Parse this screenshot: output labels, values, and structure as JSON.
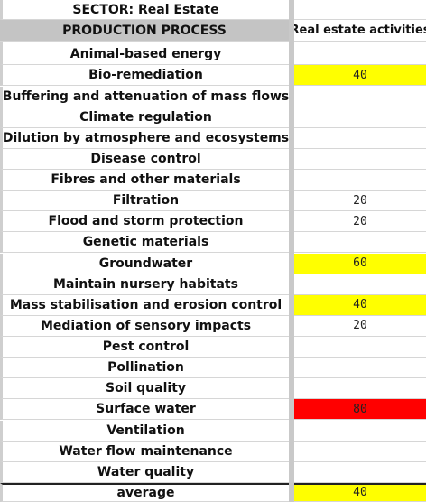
{
  "sector_label": "SECTOR: Real Estate",
  "header": {
    "process_label": "PRODUCTION PROCESS",
    "activity_label": "Real estate activities"
  },
  "colors": {
    "yellow": "#ffff00",
    "red": "#ff0000",
    "header_gray": "#c4c4c4"
  },
  "rows": [
    {
      "name": "Animal-based energy",
      "value": "",
      "color": ""
    },
    {
      "name": "Bio-remediation",
      "value": "40",
      "color": "#ffff00"
    },
    {
      "name": "Buffering and attenuation of mass flows",
      "value": "",
      "color": ""
    },
    {
      "name": "Climate regulation",
      "value": "",
      "color": ""
    },
    {
      "name": "Dilution by atmosphere and ecosystems",
      "value": "",
      "color": ""
    },
    {
      "name": "Disease control",
      "value": "",
      "color": ""
    },
    {
      "name": "Fibres and other materials",
      "value": "",
      "color": ""
    },
    {
      "name": "Filtration",
      "value": "20",
      "color": ""
    },
    {
      "name": "Flood and storm protection",
      "value": "20",
      "color": ""
    },
    {
      "name": "Genetic materials",
      "value": "",
      "color": ""
    },
    {
      "name": "Groundwater",
      "value": "60",
      "color": "#ffff00"
    },
    {
      "name": "Maintain nursery habitats",
      "value": "",
      "color": ""
    },
    {
      "name": "Mass stabilisation and erosion control",
      "value": "40",
      "color": "#ffff00"
    },
    {
      "name": "Mediation of sensory impacts",
      "value": "20",
      "color": ""
    },
    {
      "name": "Pest control",
      "value": "",
      "color": ""
    },
    {
      "name": "Pollination",
      "value": "",
      "color": ""
    },
    {
      "name": "Soil quality",
      "value": "",
      "color": ""
    },
    {
      "name": "Surface water",
      "value": "80",
      "color": "#ff0000"
    },
    {
      "name": "Ventilation",
      "value": "",
      "color": ""
    },
    {
      "name": "Water flow maintenance",
      "value": "",
      "color": ""
    },
    {
      "name": "Water quality",
      "value": "",
      "color": ""
    }
  ],
  "average": {
    "label": "average",
    "value": "40",
    "color": "#ffff00"
  }
}
